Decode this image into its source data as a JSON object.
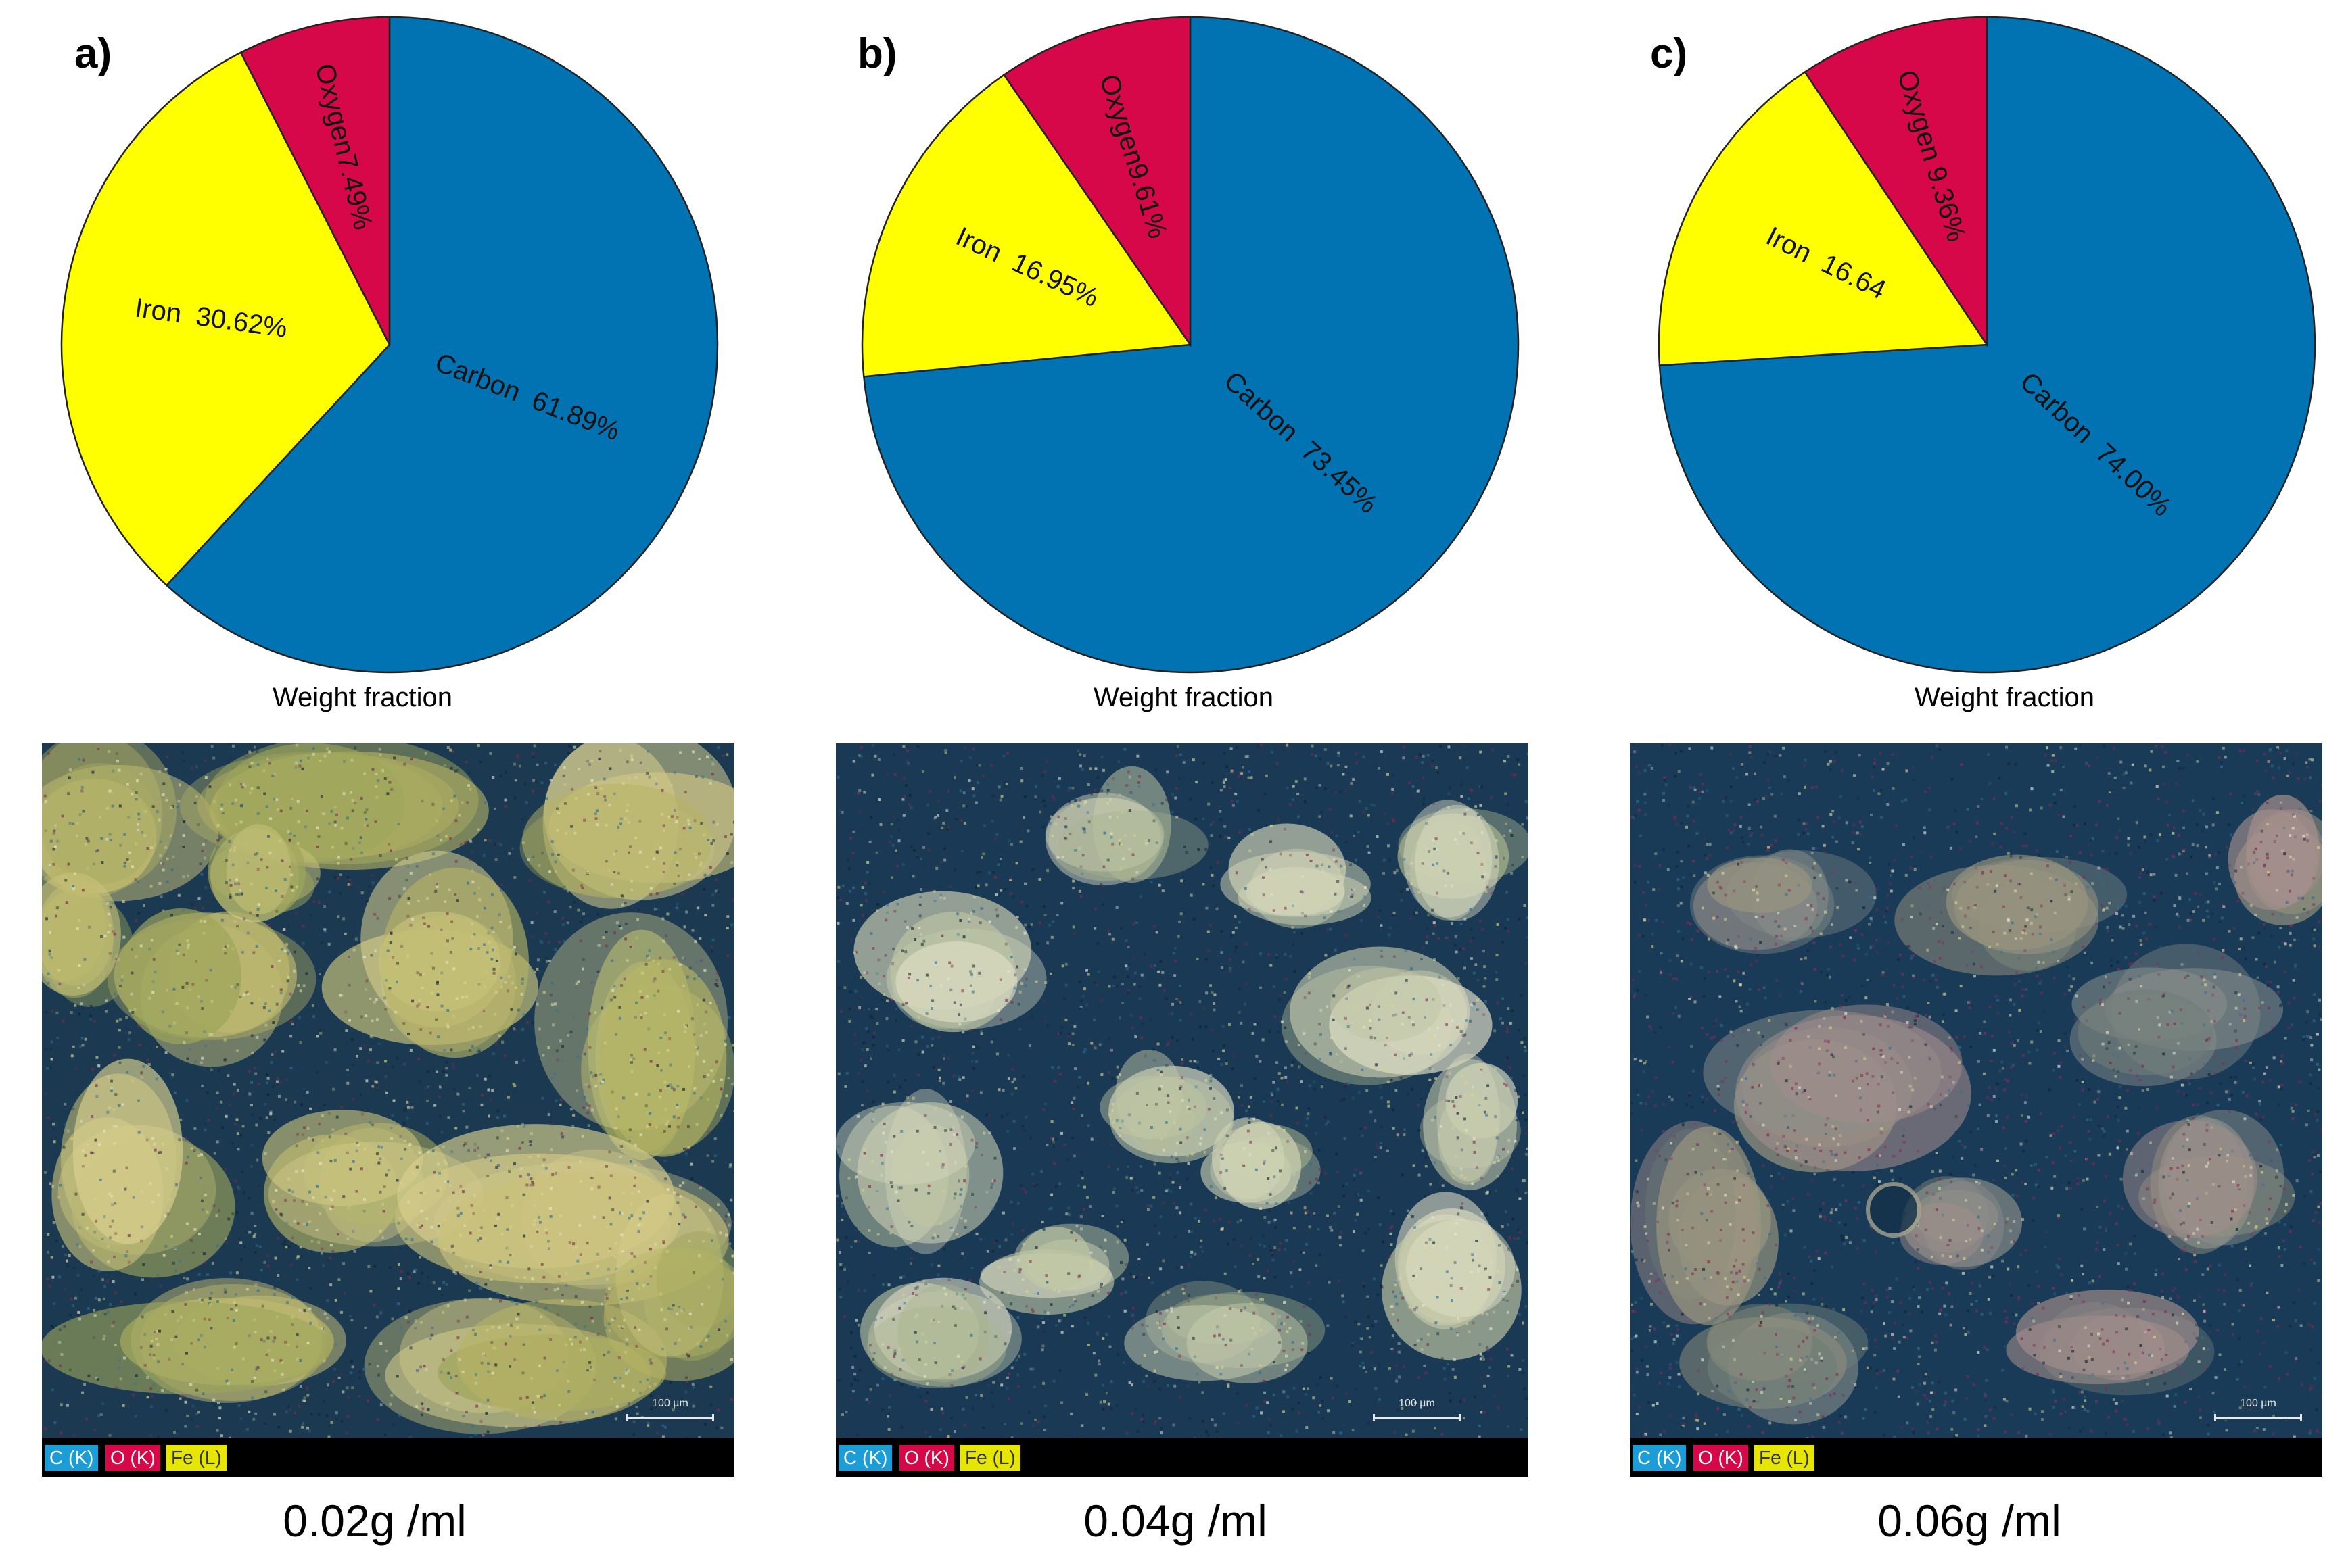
{
  "chart_data": [
    {
      "type": "pie",
      "panel": "a)",
      "caption": "Weight fraction",
      "slices": [
        {
          "name": "Carbon",
          "label": "Carbon  61.89%",
          "value": 61.89,
          "color": "#0173b3"
        },
        {
          "name": "Iron",
          "label": "Iron  30.62%",
          "value": 30.62,
          "color": "#ffff00"
        },
        {
          "name": "Oxygen",
          "label": "Oxygen7.49%",
          "value": 7.49,
          "color": "#d6084a"
        }
      ]
    },
    {
      "type": "pie",
      "panel": "b)",
      "caption": "Weight fraction",
      "slices": [
        {
          "name": "Carbon",
          "label": "Carbon  73.45%",
          "value": 73.45,
          "color": "#0173b3"
        },
        {
          "name": "Iron",
          "label": "Iron  16.95%",
          "value": 16.95,
          "color": "#ffff00"
        },
        {
          "name": "Oxygen",
          "label": "Oxygen9.61%",
          "value": 9.61,
          "color": "#d6084a"
        }
      ]
    },
    {
      "type": "pie",
      "panel": "c)",
      "caption": "Weight fraction",
      "slices": [
        {
          "name": "Carbon",
          "label": "Carbon  74.00%",
          "value": 74.0,
          "color": "#0173b3"
        },
        {
          "name": "Iron",
          "label": "Iron  16.64",
          "value": 16.64,
          "color": "#ffff00"
        },
        {
          "name": "Oxygen",
          "label": "Oxygen 9.36%",
          "value": 9.36,
          "color": "#d6084a"
        }
      ]
    }
  ],
  "maps": [
    {
      "concentration": "0.02g /ml",
      "scale_label": "100 µm",
      "legend": [
        {
          "label": "C (K)",
          "color": "#1b9ed8"
        },
        {
          "label": "O (K)",
          "color": "#d6084a"
        },
        {
          "label": "Fe (L)",
          "color": "#e6e600"
        }
      ]
    },
    {
      "concentration": "0.04g /ml",
      "scale_label": "100 µm",
      "legend": [
        {
          "label": "C (K)",
          "color": "#1b9ed8"
        },
        {
          "label": "O (K)",
          "color": "#d6084a"
        },
        {
          "label": "Fe (L)",
          "color": "#e6e600"
        }
      ]
    },
    {
      "concentration": "0.06g /ml",
      "scale_label": "100 µm",
      "legend": [
        {
          "label": "C (K)",
          "color": "#1b9ed8"
        },
        {
          "label": "O (K)",
          "color": "#d6084a"
        },
        {
          "label": "Fe (L)",
          "color": "#e6e600"
        }
      ]
    }
  ]
}
